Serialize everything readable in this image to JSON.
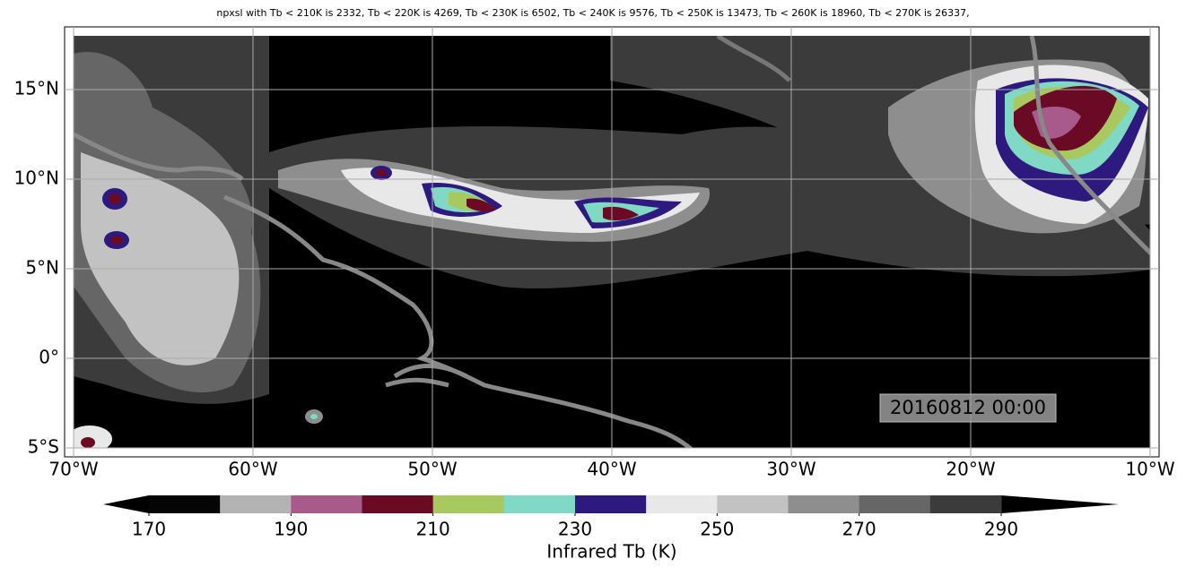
{
  "chart_data": {
    "type": "contour-map",
    "title": "npxsl with Tb < 210K is 2332,  Tb < 220K is 4269,  Tb < 230K is 6502,  Tb < 240K is 9576,  Tb < 250K is 13473,  Tb < 260K is 18960,  Tb < 270K is 26337,",
    "annotation": "20160812 00:00",
    "xlim": [
      -70.5,
      -9.5
    ],
    "ylim": [
      -5.5,
      18.5
    ],
    "xticks": [
      {
        "value": -70,
        "label": "70°W"
      },
      {
        "value": -60,
        "label": "60°W"
      },
      {
        "value": -50,
        "label": "50°W"
      },
      {
        "value": -40,
        "label": "40°W"
      },
      {
        "value": -30,
        "label": "30°W"
      },
      {
        "value": -20,
        "label": "20°W"
      },
      {
        "value": -10,
        "label": "10°W"
      }
    ],
    "yticks": [
      {
        "value": -5,
        "label": "5°S"
      },
      {
        "value": 0,
        "label": "0°"
      },
      {
        "value": 5,
        "label": "5°N"
      },
      {
        "value": 10,
        "label": "10°N"
      },
      {
        "value": 15,
        "label": "15°N"
      }
    ],
    "grid": true,
    "colorbar": {
      "label": "Infrared Tb (K)",
      "levels": [
        170,
        180,
        190,
        200,
        210,
        220,
        230,
        240,
        250,
        260,
        270,
        280,
        290
      ],
      "ticks": [
        170,
        190,
        210,
        230,
        250,
        270,
        290
      ],
      "under_color": "#000000",
      "over_color": "#000000",
      "colors": [
        "#050505",
        "#b3b3b3",
        "#a85a8a",
        "#6b0a24",
        "#a7c95f",
        "#7fd9c4",
        "#2e1a7e",
        "#e8e8e8",
        "#c2c2c2",
        "#8e8e8e",
        "#666666",
        "#3b3b3b"
      ]
    }
  }
}
